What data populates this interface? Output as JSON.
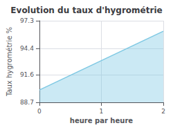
{
  "chart_data": {
    "type": "area",
    "title": "Evolution du taux d'hygrométrie",
    "xlabel": "heure par heure",
    "ylabel": "Taux hygrométrie %",
    "x": [
      0,
      2
    ],
    "values": [
      90.0,
      96.2
    ],
    "fill_bottom": 88.7,
    "color": "#7ec8e3",
    "xlim": [
      0,
      2
    ],
    "xticks": [
      0,
      1,
      2
    ],
    "ylim": [
      88.7,
      97.3
    ],
    "yticks": [
      88.7,
      91.6,
      94.4,
      97.3
    ],
    "grid": true
  }
}
